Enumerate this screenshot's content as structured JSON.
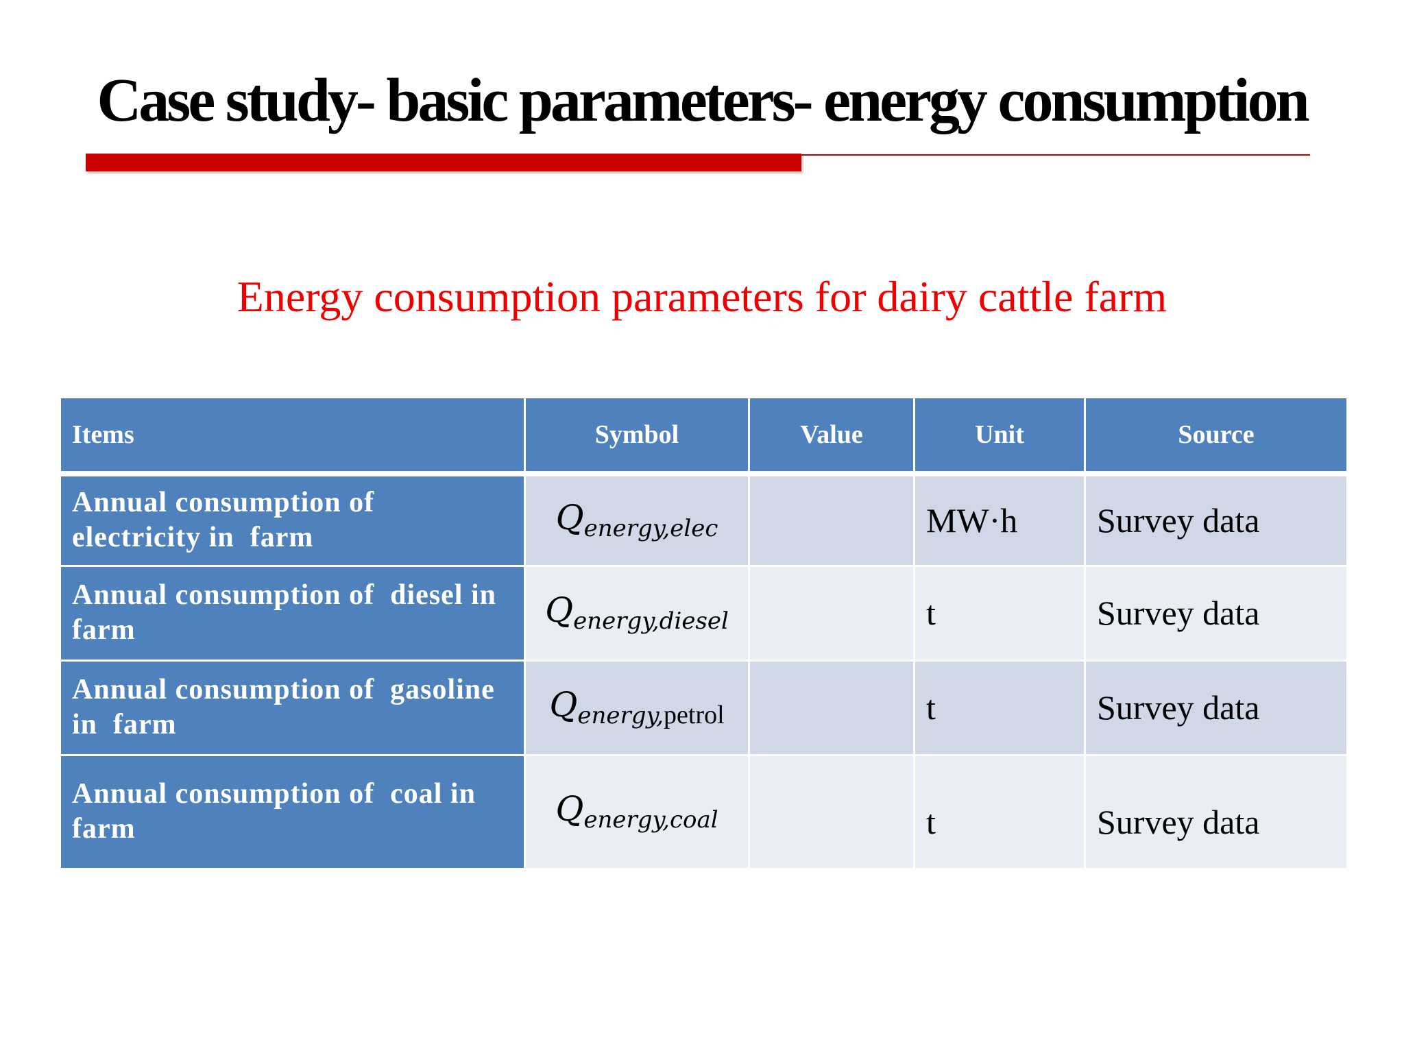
{
  "slide": {
    "title": "Case study- basic parameters- energy consumption",
    "subtitle": "Energy consumption parameters for dairy cattle farm",
    "accent_color": "#cc0000",
    "subtitle_color": "#ee0000",
    "header_color": "#4f81bd"
  },
  "table": {
    "headers": [
      "Items",
      "Symbol",
      "Value",
      "Unit",
      "Source"
    ],
    "rows": [
      {
        "item": "Annual consumption of\nelectricity in  farm",
        "symbol_base": "Q",
        "symbol_sub_italic": "energy,elec",
        "symbol_sub_upright": "",
        "value": "",
        "unit": "MW·h",
        "source": "Survey data"
      },
      {
        "item": "Annual consumption of  diesel in\nfarm",
        "symbol_base": "Q",
        "symbol_sub_italic": "energy,diesel",
        "symbol_sub_upright": "",
        "value": "",
        "unit": "t",
        "source": "Survey data"
      },
      {
        "item": "Annual consumption of  gasoline\nin  farm",
        "symbol_base": "Q",
        "symbol_sub_italic": "energy,",
        "symbol_sub_upright": "petrol",
        "value": "",
        "unit": "t",
        "source": "Survey data"
      },
      {
        "item": "Annual consumption of  coal in\nfarm",
        "symbol_base": "Q",
        "symbol_sub_italic": "energy,coal",
        "symbol_sub_upright": "",
        "value": "",
        "unit": "t",
        "source": "Survey data"
      }
    ]
  }
}
